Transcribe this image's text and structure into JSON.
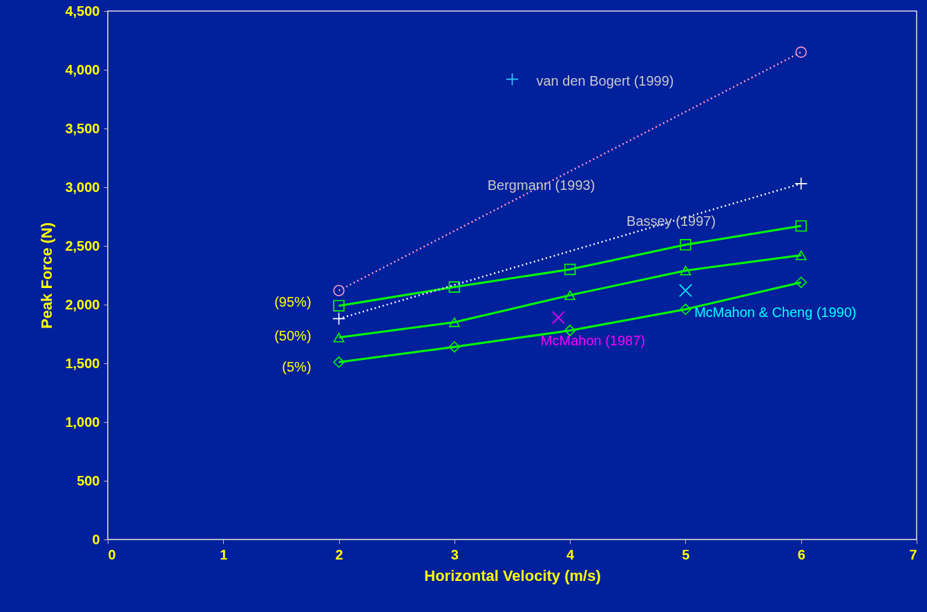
{
  "chart_data": {
    "type": "line",
    "xlabel": "Horizontal Velocity (m/s)",
    "ylabel": "Peak Force (N)",
    "xlim": [
      0,
      7
    ],
    "xticks": [
      0,
      1,
      2,
      3,
      4,
      5,
      6,
      7
    ],
    "ylim": [
      0,
      4500
    ],
    "yticks": [
      0,
      {
        "value": 500,
        "label": "500"
      },
      {
        "value": 1000,
        "label": "1,000"
      },
      {
        "value": 1500,
        "label": "1,500"
      },
      {
        "value": 2000,
        "label": "2,000"
      },
      {
        "value": 2500,
        "label": "2,500"
      },
      {
        "value": 3000,
        "label": "3,000"
      },
      {
        "value": 3500,
        "label": "3,500"
      },
      {
        "value": 4000,
        "label": "4,000"
      },
      {
        "value": 4500,
        "label": "4,500"
      }
    ],
    "grid": false,
    "series": [
      {
        "name": "(95%)",
        "type": "line",
        "color": "#00ff00",
        "marker": "square",
        "line_style": "solid",
        "x": [
          2,
          3,
          4,
          5,
          6
        ],
        "values": [
          1990,
          2150,
          2300,
          2510,
          2670
        ]
      },
      {
        "name": "(50%)",
        "type": "line",
        "color": "#00ff00",
        "marker": "triangle",
        "line_style": "solid",
        "x": [
          2,
          3,
          4,
          5,
          6
        ],
        "values": [
          1720,
          1850,
          2080,
          2290,
          2420
        ]
      },
      {
        "name": "(5%)",
        "type": "line",
        "color": "#00ff00",
        "marker": "diamond",
        "line_style": "solid",
        "x": [
          2,
          3,
          4,
          5,
          6
        ],
        "values": [
          1510,
          1640,
          1780,
          1960,
          2190
        ]
      },
      {
        "name": "Bergmann (1993)",
        "type": "line",
        "color": "#ff99cc",
        "marker": "circle",
        "line_style": "dotted",
        "x": [
          2,
          6
        ],
        "values": [
          2120,
          4150
        ]
      },
      {
        "name": "Bassey (1997)",
        "type": "line",
        "color": "#ffffff",
        "marker": "cross",
        "line_style": "dotted",
        "x": [
          2,
          6
        ],
        "values": [
          1880,
          3030
        ]
      },
      {
        "name": "McMahon (1987)",
        "type": "scatter",
        "color": "#ff00ff",
        "marker": "x",
        "x": [
          3.9
        ],
        "values": [
          1890
        ]
      },
      {
        "name": "McMahon & Cheng (1990)",
        "type": "scatter",
        "color": "#00ffff",
        "marker": "x",
        "x": [
          5
        ],
        "values": [
          2120
        ]
      },
      {
        "name": "van den Bogert (1999)",
        "type": "scatter",
        "color": "#33ccff",
        "marker": "cross",
        "x": [
          3.5
        ],
        "values": [
          3920
        ]
      }
    ]
  }
}
